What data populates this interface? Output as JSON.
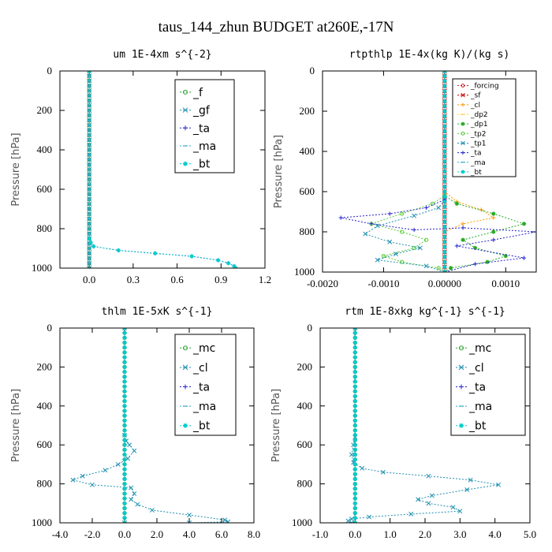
{
  "title": "taus_144_zhun  BUDGET at260E,-17N",
  "chart_data": [
    {
      "type": "line",
      "title": "um   1E-4xm s^{-2}",
      "ylabel": "Pressure [hPa]",
      "xlim": [
        -0.2,
        1.2
      ],
      "ylim": [
        1000,
        0
      ],
      "xticks": [
        0.0,
        0.3,
        0.6,
        0.9,
        1.2
      ],
      "xtick_labels": [
        "0.0",
        "0.3",
        "0.6",
        "0.9",
        "1.2"
      ],
      "yticks": [
        0,
        200,
        400,
        600,
        800,
        1000
      ],
      "ytick_labels": [
        "0",
        "200",
        "400",
        "600",
        "800",
        "1000"
      ],
      "legend_position": "top-right",
      "series": [
        {
          "name": "_f",
          "color": "#2ca02c",
          "x": [
            0,
            0
          ],
          "y": [
            0,
            1000
          ]
        },
        {
          "name": "_gf",
          "color": "#1f8fb0",
          "x": [
            0,
            0
          ],
          "y": [
            0,
            1000
          ]
        },
        {
          "name": "_ta",
          "color": "#2222cc",
          "x": [
            0,
            0,
            0.01,
            0.03,
            0.2,
            0.45,
            0.7,
            0.88,
            0.95,
            0.99,
            1.0
          ],
          "y": [
            0,
            850,
            870,
            890,
            910,
            925,
            940,
            960,
            975,
            990,
            1000
          ]
        },
        {
          "name": "_ma",
          "color": "#33aacc",
          "x": [
            0,
            0
          ],
          "y": [
            0,
            1000
          ]
        },
        {
          "name": "_bt",
          "color": "#00cccc",
          "x": [
            0,
            0,
            0.01,
            0.03,
            0.2,
            0.45,
            0.7,
            0.88,
            0.95,
            0.99,
            1.0
          ],
          "y": [
            0,
            850,
            870,
            890,
            910,
            925,
            940,
            960,
            975,
            990,
            1000
          ]
        }
      ]
    },
    {
      "type": "line",
      "title": "rtpthlp   1E-4x(kg K)/(kg s)",
      "ylabel": "Pressure [hPa]",
      "xlim": [
        -0.002,
        0.0015
      ],
      "ylim": [
        1000,
        0
      ],
      "xticks": [
        -0.002,
        -0.001,
        0.0,
        0.001
      ],
      "xtick_labels": [
        "-0.0020",
        "-0.0010",
        "0.00000",
        "0.0010"
      ],
      "yticks": [
        0,
        200,
        400,
        600,
        800,
        1000
      ],
      "ytick_labels": [
        "0",
        "200",
        "400",
        "600",
        "800",
        "1000"
      ],
      "legend_position": "top-right",
      "series": [
        {
          "name": "_forcing",
          "color": "#cc2222",
          "x": [
            0,
            0
          ],
          "y": [
            0,
            1000
          ]
        },
        {
          "name": "_sf",
          "color": "#cc0000",
          "x": [
            0,
            0
          ],
          "y": [
            0,
            1000
          ]
        },
        {
          "name": "_cl",
          "color": "#ff9900",
          "x": [
            0,
            0,
            0.0002,
            0.0006,
            0.0008,
            0.0003,
            0.0,
            0,
            0
          ],
          "y": [
            0,
            600,
            650,
            690,
            730,
            760,
            800,
            850,
            1000
          ]
        },
        {
          "name": "_dp2",
          "color": "#ffcc33",
          "x": [
            0,
            0
          ],
          "y": [
            0,
            1000
          ]
        },
        {
          "name": "_dp1",
          "color": "#22aa22",
          "x": [
            0,
            0,
            0.0002,
            0.0008,
            0.0013,
            0.0008,
            0.0003,
            0.0005,
            0.001,
            0.0007,
            0.0001,
            0
          ],
          "y": [
            0,
            620,
            660,
            710,
            760,
            800,
            840,
            880,
            920,
            950,
            980,
            1000
          ]
        },
        {
          "name": "_tp2",
          "color": "#55cc33",
          "x": [
            0,
            0,
            -0.0002,
            -0.0007,
            -0.0012,
            -0.0007,
            -0.0003,
            -0.0005,
            -0.001,
            -0.0007,
            -0.0001,
            0
          ],
          "y": [
            0,
            620,
            660,
            710,
            760,
            800,
            840,
            880,
            920,
            950,
            980,
            1000
          ]
        },
        {
          "name": "_tp1",
          "color": "#1f8fb0",
          "x": [
            0,
            0,
            -0.0001,
            -0.0005,
            -0.0011,
            -0.0013,
            -0.0009,
            -0.0004,
            -0.0008,
            -0.0011,
            -0.0003,
            0
          ],
          "y": [
            0,
            640,
            680,
            720,
            770,
            810,
            850,
            880,
            910,
            940,
            970,
            1000
          ]
        },
        {
          "name": "_ta",
          "color": "#2222cc",
          "x": [
            0,
            0,
            -0.0003,
            -0.0009,
            -0.0017,
            -0.0012,
            -0.0005,
            0.0003,
            0.0015,
            0.0008,
            0.0002,
            0.0013,
            0.0005,
            0
          ],
          "y": [
            0,
            640,
            680,
            710,
            730,
            760,
            790,
            780,
            800,
            840,
            870,
            930,
            960,
            1000
          ]
        },
        {
          "name": "_ma",
          "color": "#33aacc",
          "x": [
            0,
            0
          ],
          "y": [
            0,
            1000
          ]
        },
        {
          "name": "_bt",
          "color": "#00cccc",
          "x": [
            0,
            0
          ],
          "y": [
            0,
            1000
          ]
        }
      ]
    },
    {
      "type": "line",
      "title": "thlm   1E-5xK s^{-1}",
      "ylabel": "Pressure [hPa]",
      "xlim": [
        -4,
        8
      ],
      "ylim": [
        1000,
        0
      ],
      "xticks": [
        -4,
        -2,
        0,
        2,
        4,
        6,
        8
      ],
      "xtick_labels": [
        "-4.0",
        "-2.0",
        "0.0",
        "2.0",
        "4.0",
        "6.0",
        "8.0"
      ],
      "yticks": [
        0,
        200,
        400,
        600,
        800,
        1000
      ],
      "ytick_labels": [
        "0",
        "200",
        "400",
        "600",
        "800",
        "1000"
      ],
      "legend_position": "top-right",
      "series": [
        {
          "name": "_mc",
          "color": "#2ca02c",
          "x": [
            0,
            0
          ],
          "y": [
            0,
            1000
          ]
        },
        {
          "name": "_cl",
          "color": "#1f8fb0",
          "x": [
            0,
            0,
            0.1,
            0.3,
            0.6,
            0.2,
            -0.4,
            -1.2,
            -2.6,
            -3.2,
            -2.0,
            0.4,
            0.6,
            0.4,
            0.8,
            1.7,
            4.0,
            6.2,
            6.4,
            4.0,
            0
          ],
          "y": [
            0,
            550,
            580,
            600,
            630,
            670,
            700,
            730,
            760,
            780,
            805,
            820,
            850,
            880,
            905,
            935,
            960,
            985,
            995,
            1000,
            1000
          ]
        },
        {
          "name": "_ta",
          "color": "#2222cc",
          "x": [
            0,
            0
          ],
          "y": [
            0,
            1000
          ]
        },
        {
          "name": "_ma",
          "color": "#33aacc",
          "x": [
            0,
            0
          ],
          "y": [
            0,
            1000
          ]
        },
        {
          "name": "_bt",
          "color": "#00cccc",
          "x": [
            0,
            0
          ],
          "y": [
            0,
            1000
          ]
        }
      ]
    },
    {
      "type": "line",
      "title": "rtm   1E-8xkg kg^{-1} s^{-1}",
      "ylabel": "Pressure [hPa]",
      "xlim": [
        -1,
        5
      ],
      "ylim": [
        1000,
        0
      ],
      "xticks": [
        -1,
        0,
        1,
        2,
        3,
        4,
        5
      ],
      "xtick_labels": [
        "-1.0",
        "0.0",
        "1.0",
        "2.0",
        "3.0",
        "4.0",
        "5.0"
      ],
      "yticks": [
        0,
        200,
        400,
        600,
        800,
        1000
      ],
      "ytick_labels": [
        "0",
        "200",
        "400",
        "600",
        "800",
        "1000"
      ],
      "legend_position": "top-right",
      "series": [
        {
          "name": "_mc",
          "color": "#2ca02c",
          "x": [
            0,
            0
          ],
          "y": [
            0,
            1000
          ]
        },
        {
          "name": "_cl",
          "color": "#1f8fb0",
          "x": [
            0,
            0,
            -0.05,
            -0.1,
            -0.05,
            0.2,
            0.8,
            2.1,
            3.3,
            4.1,
            3.2,
            2.2,
            1.8,
            2.1,
            2.8,
            3.0,
            1.6,
            0.4,
            -0.1,
            -0.2,
            -0.1
          ],
          "y": [
            0,
            560,
            600,
            650,
            690,
            720,
            740,
            760,
            780,
            805,
            830,
            860,
            880,
            900,
            920,
            940,
            955,
            970,
            980,
            990,
            1000
          ]
        },
        {
          "name": "_ta",
          "color": "#2222cc",
          "x": [
            0,
            0
          ],
          "y": [
            0,
            1000
          ]
        },
        {
          "name": "_ma",
          "color": "#33aacc",
          "x": [
            0,
            0
          ],
          "y": [
            0,
            1000
          ]
        },
        {
          "name": "_bt",
          "color": "#00cccc",
          "x": [
            0,
            0
          ],
          "y": [
            0,
            1000
          ]
        }
      ]
    }
  ]
}
